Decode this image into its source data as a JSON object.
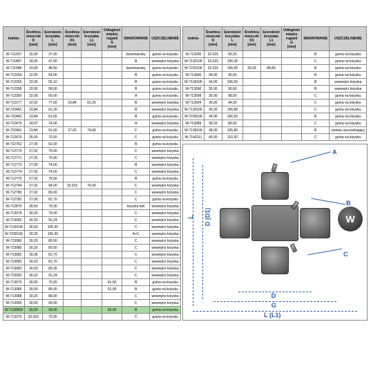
{
  "headers": [
    "Indeks",
    "Średnica miseczki D [mm]",
    "Szerokość krzyżaka L [mm]",
    "Średnica miseczki D1 [mm]",
    "Szerokość krzyżaka L1 [mm]",
    "Odległość między rogami G [mm]",
    "SMAROWANIE",
    "USZCZELNIENIE"
  ],
  "left_rows": [
    [
      "W-711637",
      "16,00",
      "37,00",
      "",
      "",
      "",
      "bezsmarowy",
      "guma na łożysku"
    ],
    [
      "W-711847",
      "18,00",
      "47,00",
      "",
      "",
      "",
      "B",
      "wewnętrz łożyska"
    ],
    [
      "W-711948",
      "19,00",
      "48,50",
      "",
      "",
      "",
      "bezsmarowy",
      "guma na łożysku"
    ],
    [
      "W-712254",
      "22,00",
      "54,00",
      "",
      "",
      "",
      "B",
      "guma na łożysku"
    ],
    [
      "W-712255",
      "22,00",
      "55,10",
      "",
      "",
      "",
      "B",
      "guma na łożysku"
    ],
    [
      "W-712258",
      "22,00",
      "58,00",
      "",
      "",
      "",
      "B",
      "guma na łożysku"
    ],
    [
      "W-712260",
      "22,00",
      "60,00",
      "",
      "",
      "",
      "A",
      "guma na łożysku"
    ],
    [
      "W-712277",
      "22,02",
      "77,00",
      "23,84",
      "61,20",
      "",
      "B",
      "wewnętrz łożyska"
    ],
    [
      "W-722462",
      "23,84",
      "61,20",
      "",
      "",
      "",
      "B",
      "wewnętrz łożyska"
    ],
    [
      "W-722463",
      "23,84",
      "61,65",
      "",
      "",
      "",
      "B",
      "guma na łożysku"
    ],
    [
      "W-712475",
      "24,07",
      "74,90",
      "",
      "",
      "",
      "A",
      "wewnętrz łożyska"
    ],
    [
      "W-722491",
      "23,84",
      "91,00",
      "27,02",
      "74,60",
      "",
      "C",
      "guma na łożysku"
    ],
    [
      "W-712670",
      "26,00",
      "70,50",
      "",
      "",
      "",
      "C",
      "guma na łożysku"
    ],
    [
      "W-722762",
      "27,00",
      "62,00",
      "",
      "",
      "",
      "B",
      "guma na łożysku"
    ],
    [
      "W-712770",
      "27,02",
      "70,00",
      "",
      "",
      "",
      "C",
      "wewnętrz łożyska"
    ],
    [
      "W-712771",
      "27,02",
      "70,90",
      "",
      "",
      "",
      "C",
      "wewnętrz łożyska"
    ],
    [
      "W-712773",
      "27,00",
      "74,60",
      "",
      "",
      "",
      "B",
      "wewnętrz łożyska"
    ],
    [
      "W-712774",
      "27,02",
      "74,60",
      "",
      "",
      "",
      "C",
      "wewnętrz łożyska"
    ],
    [
      "W-712775",
      "27,02",
      "75,00",
      "",
      "",
      "",
      "B",
      "guma na łożysku"
    ],
    [
      "W-712794",
      "27,02",
      "94,00",
      "32,015",
      "76,00",
      "",
      "C",
      "wewnętrz łożyska"
    ],
    [
      "W-712780",
      "27,02",
      "80,00",
      "",
      "",
      "",
      "C",
      "wewnętrz łożyska"
    ],
    [
      "W-712782",
      "27,00",
      "81,70",
      "",
      "",
      "",
      "C",
      "guma na łożysku"
    ],
    [
      "W-712870",
      "28,50",
      "70,30",
      "",
      "",
      "",
      "łożyska bok",
      "wewnętrz łożyska"
    ],
    [
      "W-713078",
      "30,20",
      "79,00",
      "",
      "",
      "",
      "C",
      "wewnętrz łożyska"
    ],
    [
      "W-713092",
      "30,20",
      "91,24",
      "",
      "",
      "",
      "C",
      "wewnętrz łożyska"
    ],
    [
      "W-7130106",
      "30,03",
      "106,30",
      "",
      "",
      "",
      "C",
      "wewnętrz łożyska"
    ],
    [
      "W-7230106",
      "30,20",
      "106,30",
      "",
      "",
      "",
      "A+C",
      "wewnętrz łożyska"
    ],
    [
      "W-713080",
      "30,20",
      "80,00",
      "",
      "",
      "",
      "C",
      "wewnętrz łożyska"
    ],
    [
      "W-723080",
      "30,20",
      "80,00",
      "",
      "",
      "",
      "C",
      "wewnętrz łożyska"
    ],
    [
      "W-713082",
      "30,35",
      "81,70",
      "",
      "",
      "",
      "C",
      "wewnętrz łożyska"
    ],
    [
      "W-723082",
      "30,20",
      "81,70",
      "",
      "",
      "",
      "C",
      "wewnętrz łożyska"
    ],
    [
      "W-713083",
      "30,03",
      "83,35",
      "",
      "",
      "",
      "C",
      "wewnętrz łożyska"
    ],
    [
      "W-723092",
      "30,20",
      "91,24",
      "",
      "",
      "",
      "C",
      "wewnętrz łożyska"
    ],
    [
      "W-713075",
      "30,00",
      "75,00",
      "",
      "",
      "41,50",
      "B",
      "guma na łożysku"
    ],
    [
      "W-713085",
      "30,00",
      "85,00",
      "",
      "",
      "51,00",
      "B",
      "guma na łożysku"
    ],
    [
      "W-713088",
      "30,20",
      "88,00",
      "",
      "",
      "",
      "C",
      "wewnętrz łożyska"
    ],
    [
      "W-713090",
      "30,03",
      "90,00",
      "",
      "",
      "",
      "C",
      "wewnętrz łożyska"
    ],
    [
      "W-7130909",
      "30,00",
      "90,00",
      "",
      "",
      "55,00",
      "B",
      "guma na łożysku"
    ],
    [
      "W-713276",
      "32,015",
      "75,90",
      "",
      "",
      "",
      "C",
      "guma na łożysku"
    ]
  ],
  "right_rows": [
    [
      "W-713290",
      "32,015",
      "90,20",
      "",
      "",
      "",
      "B",
      "guma na łożysku"
    ],
    [
      "W-7132106",
      "32,015",
      "106,30",
      "",
      "",
      "",
      "C",
      "guma na łożysku"
    ],
    [
      "W-7232106",
      "32,015",
      "106,00",
      "36,03",
      "88,80",
      "",
      "B",
      "guma na łożysku"
    ],
    [
      "W-713490",
      "34,00",
      "90,00",
      "",
      "",
      "",
      "B",
      "guma na łożysku"
    ],
    [
      "W-7134106",
      "34,00",
      "106,50",
      "",
      "",
      "",
      "B",
      "wewnętrz łożyska"
    ],
    [
      "W-713590",
      "35,00",
      "90,00",
      "",
      "",
      "",
      "B",
      "wewnętrz łożyska"
    ],
    [
      "W-713598",
      "35,00",
      "98,00",
      "",
      "",
      "",
      "C",
      "guma na łożysku"
    ],
    [
      "W-713594",
      "35,00",
      "94,00",
      "",
      "",
      "",
      "C",
      "guma na łożysku"
    ],
    [
      "W-7135106",
      "35,00",
      "106,80",
      "",
      "",
      "",
      "C",
      "guma na łożysku"
    ],
    [
      "W-7235106",
      "34,90",
      "106,50",
      "",
      "",
      "",
      "B",
      "guma na łożysku"
    ],
    [
      "W-713689",
      "36,03",
      "89,00",
      "",
      "",
      "",
      "C",
      "guma na łożysku"
    ],
    [
      "W-7138106",
      "38,00",
      "105,80",
      "",
      "",
      "",
      "B",
      "zestaw uszczelniający"
    ],
    [
      "W-7140111",
      "40,00",
      "110,30",
      "",
      "",
      "",
      "C",
      "guma na łożysku"
    ]
  ],
  "highlight_index": 37,
  "diagram": {
    "labels": {
      "A": "A",
      "B": "B",
      "C": "C",
      "D": "D",
      "G": "G",
      "L": "L",
      "L1": "L (L1)",
      "D1": "D (D1)"
    },
    "colors": {
      "line": "#2a5aa8"
    }
  }
}
